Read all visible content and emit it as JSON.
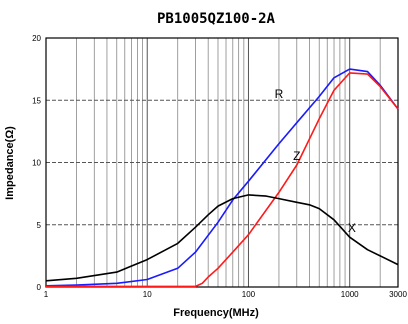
{
  "chart_data": {
    "type": "line",
    "title": "PB1005QZ100-2A",
    "xlabel": "Frequency(MHz)",
    "ylabel": "Impedance(Ω)",
    "x_scale": "log",
    "xlim": [
      1,
      3000
    ],
    "ylim": [
      0,
      20
    ],
    "x_tick_labels": [
      "1",
      "10",
      "100",
      "1000",
      "3000"
    ],
    "x_tick_values": [
      1,
      10,
      100,
      1000,
      3000
    ],
    "y_tick_labels": [
      "0",
      "5",
      "10",
      "15",
      "20"
    ],
    "y_tick_values": [
      0,
      5,
      10,
      15,
      20
    ],
    "grid": true,
    "series": [
      {
        "name": "R",
        "color": "#1a1aff",
        "style": "solid",
        "x": [
          1,
          2,
          5,
          10,
          20,
          30,
          50,
          70,
          100,
          200,
          300,
          500,
          700,
          1000,
          1500,
          2000,
          3000
        ],
        "y": [
          0.1,
          0.15,
          0.3,
          0.6,
          1.5,
          2.8,
          5.2,
          7.0,
          8.5,
          11.5,
          13.2,
          15.3,
          16.8,
          17.5,
          17.3,
          16.2,
          14.3
        ]
      },
      {
        "name": "Z",
        "color": "#ff1a1a",
        "style": "solid",
        "x": [
          1,
          2,
          5,
          10,
          20,
          30,
          35,
          40,
          50,
          70,
          100,
          200,
          300,
          500,
          700,
          1000,
          1500,
          2000,
          3000
        ],
        "y": [
          0.05,
          0.05,
          0.05,
          0.05,
          0.05,
          0.05,
          0.3,
          0.8,
          1.5,
          2.8,
          4.2,
          7.6,
          9.8,
          13.5,
          15.8,
          17.2,
          17.1,
          16.1,
          14.3
        ]
      },
      {
        "name": "X",
        "color": "#000000",
        "style": "solid",
        "x": [
          1,
          2,
          5,
          10,
          20,
          30,
          40,
          50,
          70,
          100,
          150,
          200,
          300,
          400,
          500,
          700,
          1000,
          1500,
          2000,
          3000
        ],
        "y": [
          0.5,
          0.7,
          1.2,
          2.2,
          3.5,
          4.8,
          5.8,
          6.5,
          7.1,
          7.4,
          7.3,
          7.1,
          6.8,
          6.6,
          6.3,
          5.4,
          4.0,
          3.0,
          2.5,
          1.8
        ]
      }
    ],
    "labels": [
      {
        "text": "R",
        "x": 200,
        "y": 15.2
      },
      {
        "text": "Z",
        "x": 300,
        "y": 10.2
      },
      {
        "text": "X",
        "x": 1050,
        "y": 4.4
      }
    ]
  }
}
